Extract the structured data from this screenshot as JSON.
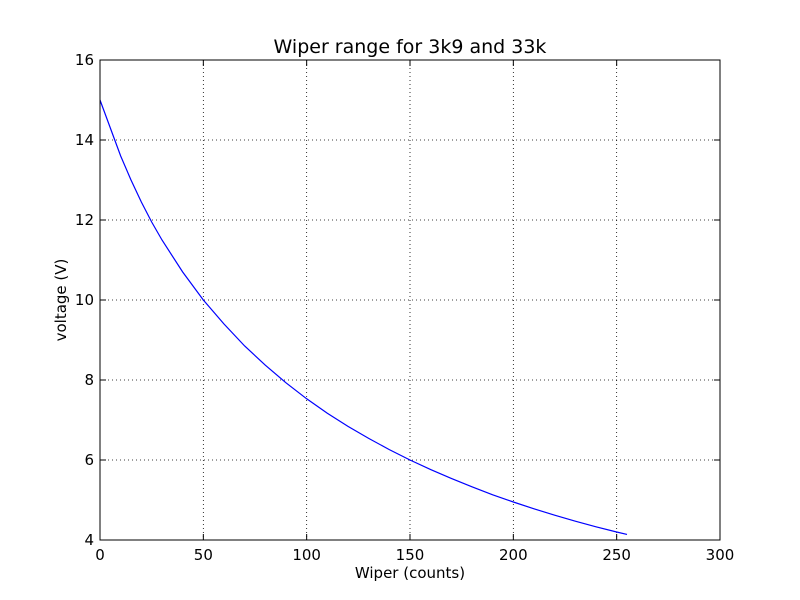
{
  "chart_data": {
    "type": "line",
    "title": "Wiper range for 3k9 and 33k",
    "xlabel": "Wiper (counts)",
    "ylabel": "voltage (V)",
    "xlim": [
      0,
      300
    ],
    "ylim": [
      4,
      16
    ],
    "xticks": [
      0,
      50,
      100,
      150,
      200,
      250,
      300
    ],
    "yticks": [
      4,
      6,
      8,
      10,
      12,
      14,
      16
    ],
    "grid": true,
    "series": [
      {
        "color": "#0000ff",
        "x": [
          0,
          5,
          10,
          15,
          20,
          25,
          30,
          40,
          50,
          60,
          70,
          80,
          90,
          100,
          110,
          120,
          130,
          140,
          150,
          160,
          170,
          180,
          190,
          200,
          210,
          220,
          230,
          240,
          250,
          255
        ],
        "y": [
          15.0,
          14.3,
          13.6,
          13.0,
          12.45,
          11.95,
          11.5,
          10.7,
          10.0,
          9.4,
          8.85,
          8.37,
          7.93,
          7.53,
          7.17,
          6.84,
          6.54,
          6.26,
          6.0,
          5.76,
          5.54,
          5.33,
          5.13,
          4.95,
          4.78,
          4.62,
          4.47,
          4.33,
          4.2,
          4.14
        ]
      }
    ]
  }
}
